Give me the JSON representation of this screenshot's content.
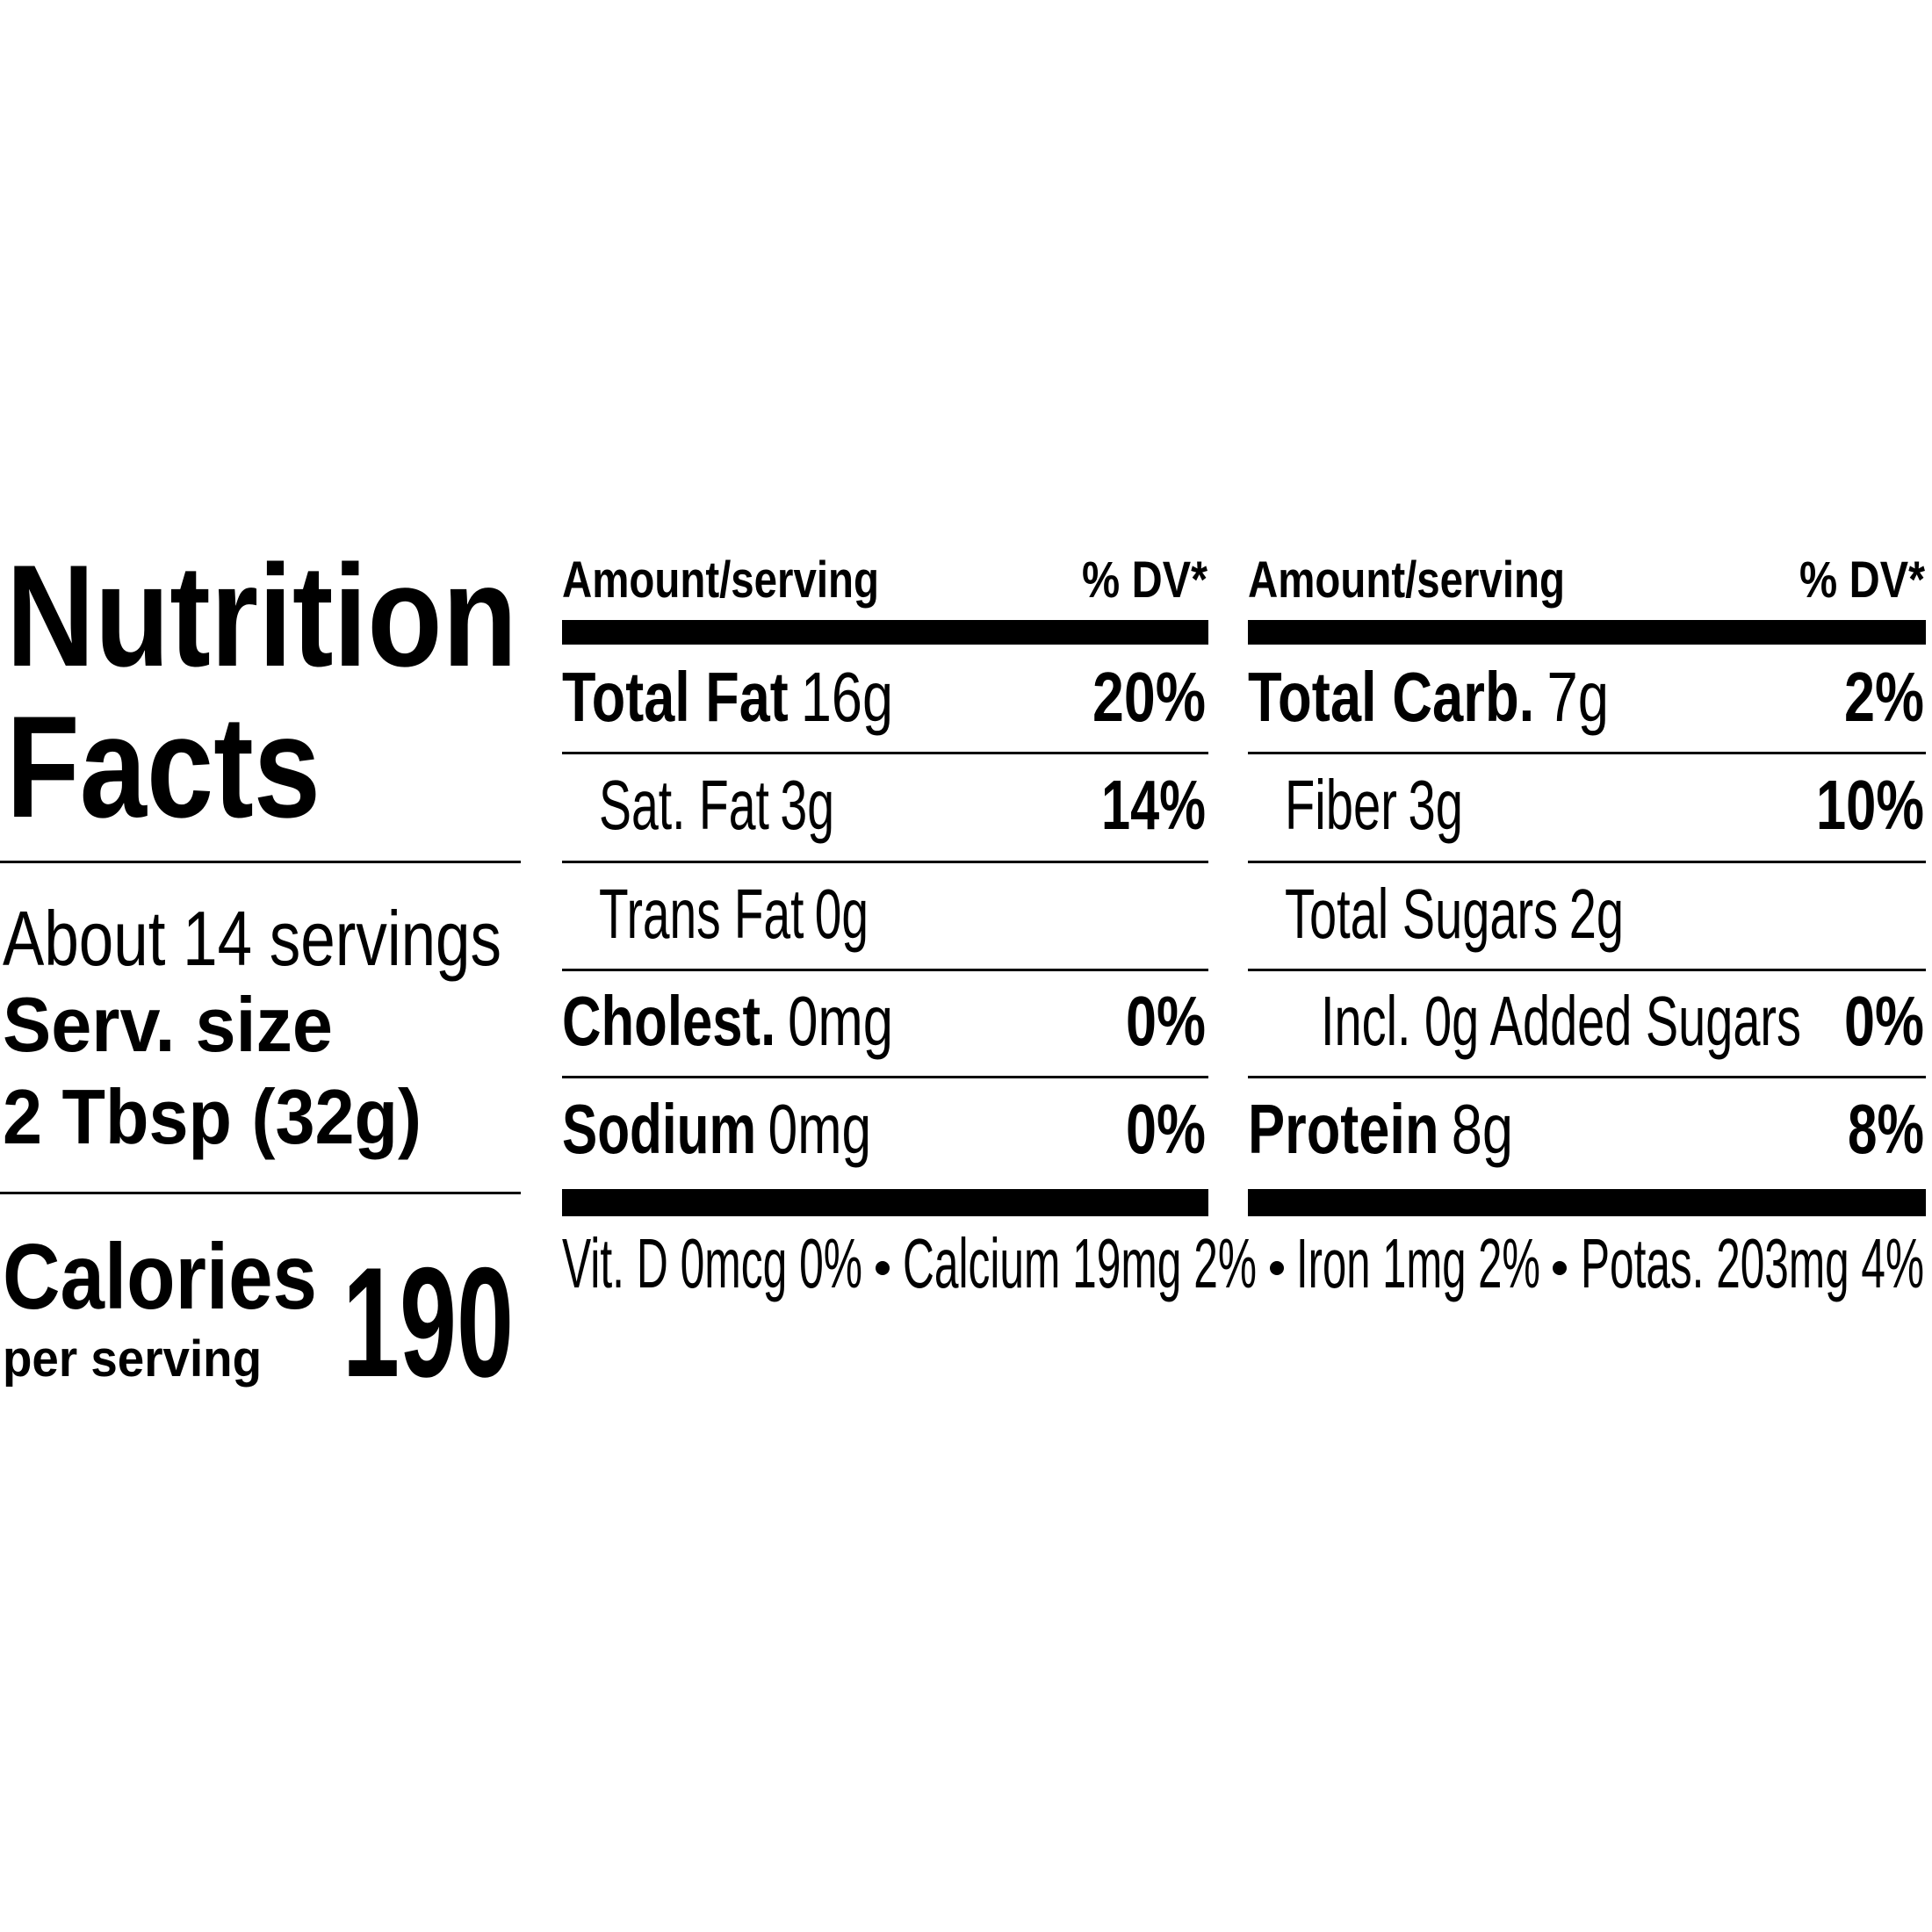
{
  "title": [
    "Nutrition",
    "Facts"
  ],
  "servings": "About 14 servings",
  "serving_size": {
    "label": "Serv. size",
    "value": "2 Tbsp (32g)"
  },
  "calories": {
    "label": "Calories",
    "sublabel": "per serving",
    "value": "190"
  },
  "columns": [
    {
      "header": {
        "amount": "Amount/serving",
        "dv": "% DV*"
      },
      "rows": [
        {
          "name": "Total Fat",
          "amount": "16g",
          "dv": "20%"
        },
        {
          "name": "Sat. Fat",
          "amount": "3g",
          "dv": "14%"
        },
        {
          "name": "Trans Fat",
          "amount": "0g"
        },
        {
          "name": "Cholest.",
          "amount": "0mg",
          "dv": "0%"
        },
        {
          "name": "Sodium",
          "amount": "0mg",
          "dv": "0%"
        }
      ]
    },
    {
      "header": {
        "amount": "Amount/serving",
        "dv": "% DV*"
      },
      "rows": [
        {
          "name": "Total Carb.",
          "amount": "7g",
          "dv": "2%"
        },
        {
          "name": "Fiber",
          "amount": "3g",
          "dv": "10%"
        },
        {
          "name": "Total Sugars",
          "amount": "2g"
        },
        {
          "name": "Incl. 0g Added Sugars",
          "dv": "0%"
        },
        {
          "name": "Protein",
          "amount": "8g",
          "dv": "8%"
        }
      ]
    }
  ],
  "footer": [
    "Vit. D 0mcg 0%",
    "Calcium 19mg 2%",
    "Iron 1mg 2%",
    "Potas. 203mg 4%"
  ]
}
